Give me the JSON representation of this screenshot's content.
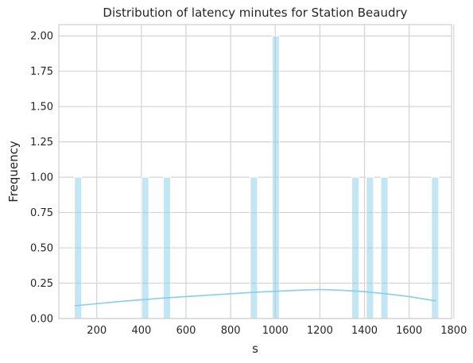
{
  "chart_data": {
    "type": "bar",
    "title": "Distribution of latency minutes for Station Beaudry",
    "xlabel": "s",
    "ylabel": "Frequency",
    "xlim": [
      30,
      1790
    ],
    "ylim": [
      0,
      2.08
    ],
    "xticks": [
      "200",
      "400",
      "600",
      "800",
      "1000",
      "1200",
      "1400",
      "1600",
      "1800"
    ],
    "yticks": [
      "0.00",
      "0.25",
      "0.50",
      "0.75",
      "1.00",
      "1.25",
      "1.50",
      "1.75",
      "2.00"
    ],
    "bin_width": 32.5,
    "bars": [
      {
        "x_start": 100,
        "value": 1
      },
      {
        "x_start": 401,
        "value": 1
      },
      {
        "x_start": 498,
        "value": 1
      },
      {
        "x_start": 888,
        "value": 1
      },
      {
        "x_start": 986,
        "value": 2
      },
      {
        "x_start": 1343,
        "value": 1
      },
      {
        "x_start": 1408,
        "value": 1
      },
      {
        "x_start": 1473,
        "value": 1
      },
      {
        "x_start": 1700,
        "value": 1
      }
    ],
    "kde": {
      "x": [
        100,
        300,
        500,
        700,
        900,
        1100,
        1200,
        1300,
        1400,
        1500,
        1600,
        1720
      ],
      "y": [
        0.09,
        0.12,
        0.145,
        0.165,
        0.185,
        0.2,
        0.205,
        0.2,
        0.19,
        0.175,
        0.155,
        0.125
      ]
    },
    "grid": true,
    "colors": {
      "bar_fill": "#87ceeb",
      "bar_opacity": "0.5",
      "kde_line": "#87ceeb",
      "grid": "#d3d3d3"
    }
  }
}
